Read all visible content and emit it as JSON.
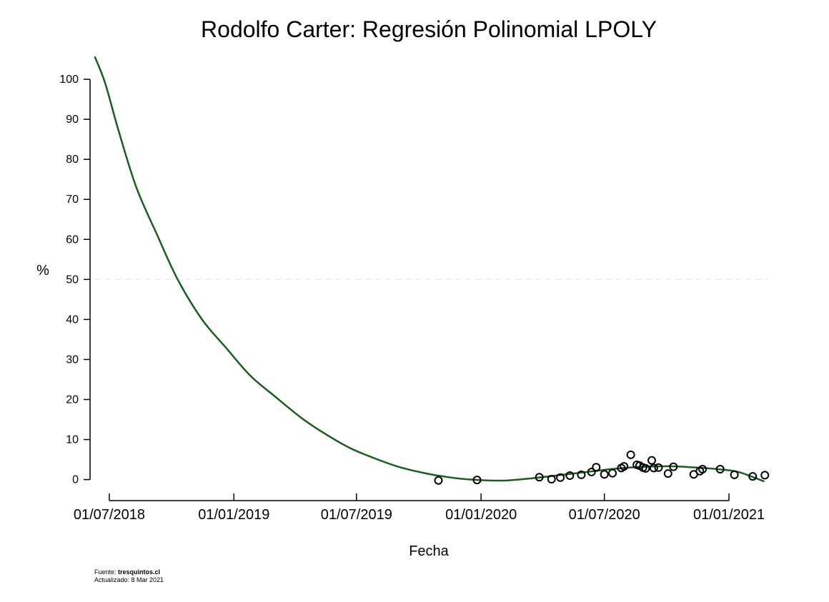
{
  "chart_data": {
    "type": "scatter",
    "title": "Rodolfo Carter: Regresión Polinomial LPOLY",
    "xlabel": "Fecha",
    "ylabel": "%",
    "x_axis_type": "date",
    "xlim": [
      "2018-06-10",
      "2021-02-28"
    ],
    "ylim": [
      -1.5,
      105
    ],
    "x_ticks": [
      "2018-07-01",
      "2019-01-01",
      "2019-07-01",
      "2020-01-01",
      "2020-07-01",
      "2021-01-01"
    ],
    "x_tick_labels": [
      "01/07/2018",
      "01/01/2019",
      "01/07/2019",
      "01/01/2020",
      "01/07/2020",
      "01/01/2021"
    ],
    "y_ticks": [
      0,
      10,
      20,
      30,
      40,
      50,
      60,
      70,
      80,
      90,
      100
    ],
    "y_tick_labels": [
      "0",
      "10",
      "20",
      "30",
      "40",
      "50",
      "60",
      "70",
      "80",
      "90",
      "100"
    ],
    "reference_line": {
      "y": 50,
      "style": "dashed",
      "color": "#e6e6e6"
    },
    "grid": false,
    "legend": "none",
    "colors": {
      "fit_line": "#1a5e1f",
      "markers": "#000000",
      "reference": "#e6e6e6"
    },
    "series": [
      {
        "type": "scatter",
        "x": [
          "2019-10-30",
          "2019-12-26",
          "2020-03-27",
          "2020-04-14",
          "2020-04-27",
          "2020-05-11",
          "2020-05-28",
          "2020-06-12",
          "2020-06-19",
          "2020-07-01",
          "2020-07-13",
          "2020-07-26",
          "2020-07-30",
          "2020-08-09",
          "2020-08-18",
          "2020-08-22",
          "2020-08-27",
          "2020-08-31",
          "2020-09-09",
          "2020-09-12",
          "2020-09-19",
          "2020-10-03",
          "2020-10-11",
          "2020-11-10",
          "2020-11-19",
          "2020-11-23",
          "2020-12-19",
          "2021-01-09",
          "2021-02-05",
          "2021-02-23"
        ],
        "y": [
          -0.2,
          -0.1,
          0.6,
          0.1,
          0.5,
          1.0,
          1.2,
          1.9,
          3.1,
          1.3,
          1.6,
          2.9,
          3.3,
          6.2,
          3.7,
          3.5,
          3.0,
          2.8,
          4.8,
          2.9,
          3.0,
          1.5,
          3.2,
          1.3,
          2.1,
          2.6,
          2.6,
          1.2,
          0.8,
          1.1
        ]
      },
      {
        "type": "line",
        "x": [
          "2018-06-10",
          "2018-06-25",
          "2018-07-15",
          "2018-08-10",
          "2018-09-10",
          "2018-10-10",
          "2018-11-15",
          "2018-12-20",
          "2019-01-25",
          "2019-03-01",
          "2019-04-10",
          "2019-05-15",
          "2019-06-20",
          "2019-07-25",
          "2019-09-01",
          "2019-10-10",
          "2019-11-10",
          "2019-12-10",
          "2020-01-10",
          "2020-02-10",
          "2020-03-15",
          "2020-04-15",
          "2020-05-15",
          "2020-06-15",
          "2020-07-15",
          "2020-08-15",
          "2020-09-15",
          "2020-10-15",
          "2020-11-15",
          "2020-12-15",
          "2021-01-15",
          "2021-02-21"
        ],
        "y": [
          105.5,
          99,
          87,
          73,
          61,
          50,
          40,
          33,
          26,
          21,
          15.5,
          11.5,
          8,
          5.5,
          3.2,
          1.6,
          0.7,
          0.1,
          -0.2,
          -0.2,
          0.3,
          0.9,
          1.5,
          2.1,
          2.7,
          3.1,
          3.3,
          3.3,
          3.0,
          2.6,
          1.9,
          -0.4
        ]
      }
    ]
  },
  "footer": {
    "source_label": "Fuente: ",
    "source_value": "tresquintos.cl",
    "updated": "Actualizado: 8 Mar 2021"
  }
}
